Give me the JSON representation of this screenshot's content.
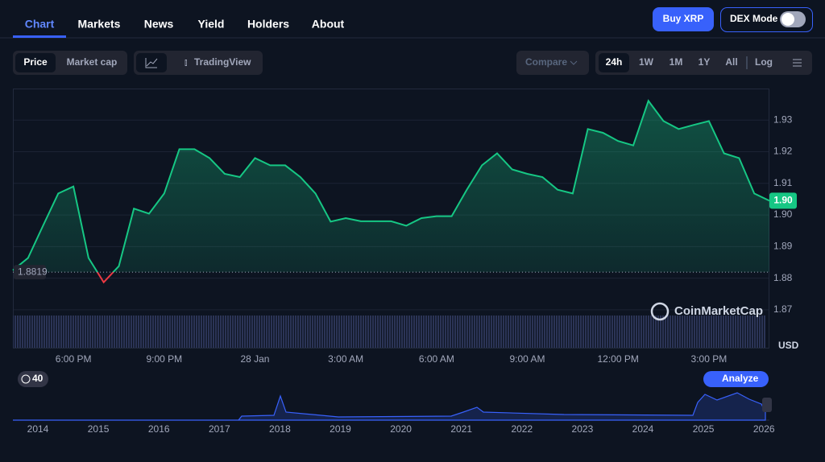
{
  "nav": {
    "tabs": [
      "Chart",
      "Markets",
      "News",
      "Yield",
      "Holders",
      "About"
    ],
    "buy": "Buy XRP",
    "dex": "DEX Mode"
  },
  "toolbar": {
    "price": "Price",
    "market_cap": "Market cap",
    "tradingview": "TradingView",
    "compare": "Compare",
    "ranges": [
      "24h",
      "1W",
      "1M",
      "1Y",
      "All"
    ],
    "log": "Log"
  },
  "chart_data": {
    "type": "line",
    "categories": [
      null,
      null,
      null,
      null,
      "6:00 PM",
      null,
      null,
      null,
      null,
      null,
      "9:00 PM",
      null,
      null,
      null,
      null,
      null,
      "28 Jan",
      null,
      null,
      null,
      null,
      null,
      "3:00 AM",
      null,
      null,
      null,
      null,
      null,
      "6:00 AM",
      null,
      null,
      null,
      null,
      null,
      "9:00 AM",
      null,
      null,
      null,
      null,
      null,
      "12:00 PM",
      null,
      null,
      null,
      null,
      null,
      "3:00 PM",
      null,
      null,
      null,
      null
    ],
    "values": [
      1.8825,
      1.8864,
      1.8967,
      1.9068,
      1.909,
      1.8864,
      1.8787,
      1.8838,
      1.902,
      1.9004,
      1.9068,
      1.9208,
      1.9208,
      1.918,
      1.913,
      1.912,
      1.918,
      1.9157,
      1.9157,
      1.912,
      1.9068,
      1.8979,
      1.899,
      1.898,
      1.898,
      1.898,
      1.8966,
      1.899,
      1.8996,
      1.8996,
      1.908,
      1.9157,
      1.9195,
      1.9144,
      1.913,
      1.912,
      1.908,
      1.9068,
      1.9272,
      1.926,
      1.9234,
      1.922,
      1.9361,
      1.9297,
      1.9272,
      1.9285,
      1.9297,
      1.9195,
      1.918,
      1.9068,
      1.9045
    ],
    "color": "#16c784",
    "below_color": "#ea3943",
    "reference": 1.8819,
    "current_price_label": "1.90",
    "ylim": [
      1.858,
      1.94
    ],
    "yticks": [
      1.87,
      1.88,
      1.89,
      {
        "value": 1.9,
        "label": "1.90"
      },
      1.91,
      1.92,
      1.93
    ],
    "grid": true,
    "unit": "USD",
    "watermark": "CoinMarketCap"
  },
  "navigator": {
    "zoom": "40",
    "analyze": "Analyze",
    "years": [
      "2014",
      "2015",
      "2016",
      "2017",
      "2018",
      "2019",
      "2020",
      "2021",
      "2022",
      "2023",
      "2024",
      "2025",
      "2026"
    ]
  }
}
